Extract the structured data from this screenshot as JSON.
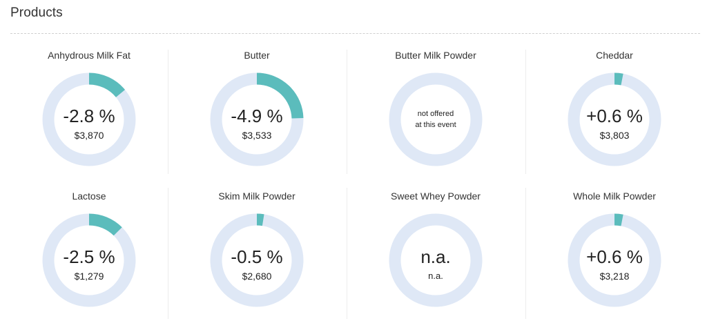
{
  "header": {
    "title": "Products"
  },
  "colors": {
    "ring_track": "#dfe8f6",
    "ring_fill": "#5bbcbc"
  },
  "products": [
    {
      "name": "Anhydrous Milk Fat",
      "change": "-2.8 %",
      "price": "$3,870",
      "fill_percent": 2.8
    },
    {
      "name": "Butter",
      "change": "-4.9 %",
      "price": "$3,533",
      "fill_percent": 4.9
    },
    {
      "name": "Butter Milk Powder",
      "note_line1": "not offered",
      "note_line2": "at this event",
      "fill_percent": 0
    },
    {
      "name": "Cheddar",
      "change": "+0.6 %",
      "price": "$3,803",
      "fill_percent": 0.6
    },
    {
      "name": "Lactose",
      "change": "-2.5 %",
      "price": "$1,279",
      "fill_percent": 2.5
    },
    {
      "name": "Skim Milk Powder",
      "change": "-0.5 %",
      "price": "$2,680",
      "fill_percent": 0.5
    },
    {
      "name": "Sweet Whey Powder",
      "change": "n.a.",
      "price": "n.a.",
      "fill_percent": 0
    },
    {
      "name": "Whole Milk Powder",
      "change": "+0.6 %",
      "price": "$3,218",
      "fill_percent": 0.6
    }
  ]
}
